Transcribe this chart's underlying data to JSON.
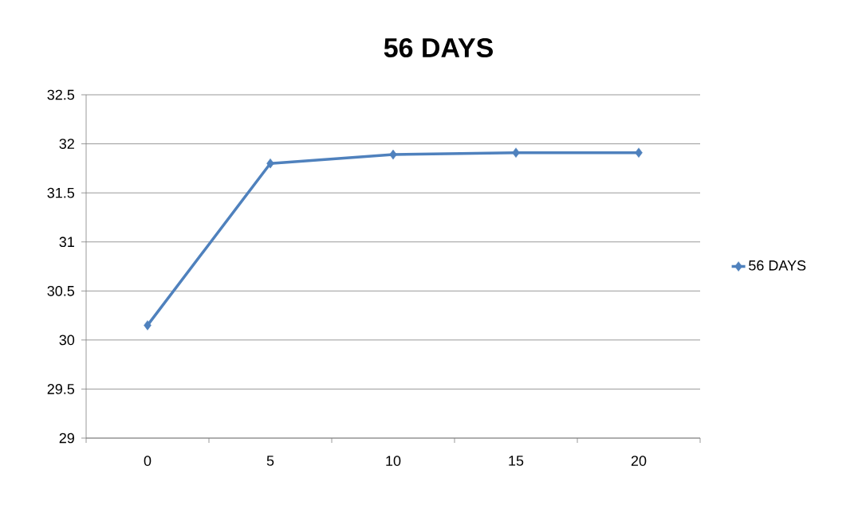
{
  "chart_data": {
    "type": "line",
    "title": "56 DAYS",
    "categories": [
      "0",
      "5",
      "10",
      "15",
      "20"
    ],
    "series": [
      {
        "name": "56 DAYS",
        "color": "#4f81bd",
        "values": [
          30.15,
          31.8,
          31.89,
          31.91,
          31.91
        ]
      }
    ],
    "ylim": [
      29,
      32.5
    ],
    "yticks": [
      29,
      29.5,
      30,
      30.5,
      31,
      31.5,
      32,
      32.5
    ],
    "grid": "y",
    "legend": "right",
    "marker": "diamond",
    "line_style": "solid"
  }
}
